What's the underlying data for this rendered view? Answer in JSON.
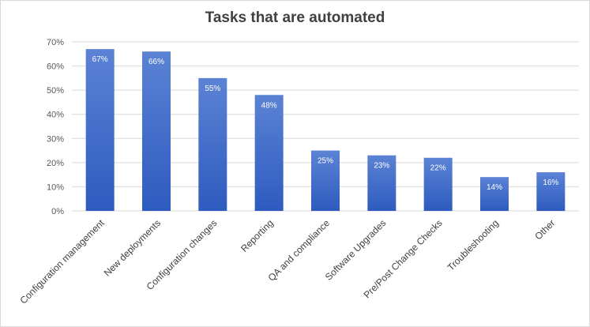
{
  "chart_data": {
    "type": "bar",
    "title": "Tasks that are automated",
    "categories": [
      "Configuration management",
      "New deployments",
      "Configuration changes",
      "Reporting",
      "QA and compliance",
      "Software Upgrades",
      "Pre/Post Change Checks",
      "Troubleshooting",
      "Other"
    ],
    "values": [
      67,
      66,
      55,
      48,
      25,
      23,
      22,
      14,
      16
    ],
    "data_labels": [
      "67%",
      "66%",
      "55%",
      "48%",
      "25%",
      "23%",
      "22%",
      "14%",
      "16%"
    ],
    "ylim": [
      0,
      70
    ],
    "yticks": [
      0,
      10,
      20,
      30,
      40,
      50,
      60,
      70
    ],
    "ytick_labels": [
      "0%",
      "10%",
      "20%",
      "30%",
      "40%",
      "50%",
      "60%",
      "70%"
    ],
    "grid": true,
    "bar_color_top": "#5b82d4",
    "bar_color_bottom": "#2e5bbf",
    "xlabel": "",
    "ylabel": ""
  }
}
